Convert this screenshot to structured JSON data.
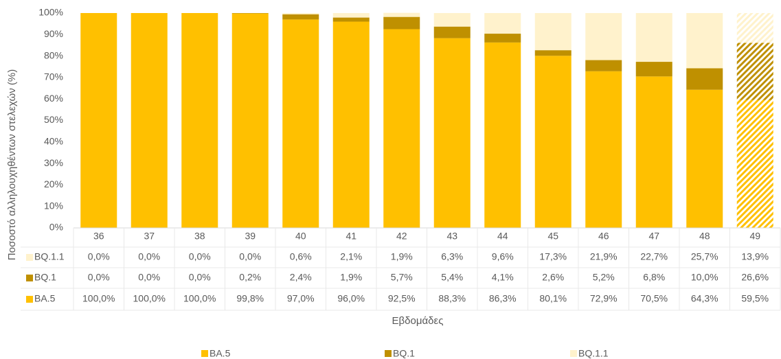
{
  "chart_data": {
    "type": "stacked_bar",
    "x_label": "Εβδομάδες",
    "y_label": "Ποσοστό αλληλουχηθέντων στελεχών (%)",
    "categories": [
      "36",
      "37",
      "38",
      "39",
      "40",
      "41",
      "42",
      "43",
      "44",
      "45",
      "46",
      "47",
      "48",
      "49"
    ],
    "series": [
      {
        "name": "BA.5",
        "color": "#FFC000",
        "values": [
          100.0,
          100.0,
          100.0,
          99.8,
          97.0,
          96.0,
          92.5,
          88.3,
          86.3,
          80.1,
          72.9,
          70.5,
          64.3,
          59.5
        ],
        "value_labels": [
          "100,0%",
          "100,0%",
          "100,0%",
          "99,8%",
          "97,0%",
          "96,0%",
          "92,5%",
          "88,3%",
          "86,3%",
          "80,1%",
          "72,9%",
          "70,5%",
          "64,3%",
          "59,5%"
        ]
      },
      {
        "name": "BQ.1",
        "color": "#BF9000",
        "values": [
          0.0,
          0.0,
          0.0,
          0.2,
          2.4,
          1.9,
          5.7,
          5.4,
          4.1,
          2.6,
          5.2,
          6.8,
          10.0,
          26.6
        ],
        "value_labels": [
          "0,0%",
          "0,0%",
          "0,0%",
          "0,2%",
          "2,4%",
          "1,9%",
          "5,7%",
          "5,4%",
          "4,1%",
          "2,6%",
          "5,2%",
          "6,8%",
          "10,0%",
          "26,6%"
        ]
      },
      {
        "name": "BQ.1.1",
        "color": "#FFF2CC",
        "values": [
          0.0,
          0.0,
          0.0,
          0.0,
          0.6,
          2.1,
          1.9,
          6.3,
          9.6,
          17.3,
          21.9,
          22.7,
          25.7,
          13.9
        ],
        "value_labels": [
          "0,0%",
          "0,0%",
          "0,0%",
          "0,0%",
          "0,6%",
          "2,1%",
          "1,9%",
          "6,3%",
          "9,6%",
          "17,3%",
          "21,9%",
          "22,7%",
          "25,7%",
          "13,9%"
        ]
      }
    ],
    "hatched_categories": [
      "49"
    ],
    "ylim": [
      0,
      100
    ],
    "yticks": [
      {
        "value": 0,
        "label": "0%"
      },
      {
        "value": 10,
        "label": "10%"
      },
      {
        "value": 20,
        "label": "20%"
      },
      {
        "value": 30,
        "label": "30%"
      },
      {
        "value": 40,
        "label": "40%"
      },
      {
        "value": 50,
        "label": "50%"
      },
      {
        "value": 60,
        "label": "60%"
      },
      {
        "value": 70,
        "label": "70%"
      },
      {
        "value": 80,
        "label": "80%"
      },
      {
        "value": 90,
        "label": "90%"
      },
      {
        "value": 100,
        "label": "100%"
      }
    ],
    "grid": false,
    "legend": "bottom"
  }
}
